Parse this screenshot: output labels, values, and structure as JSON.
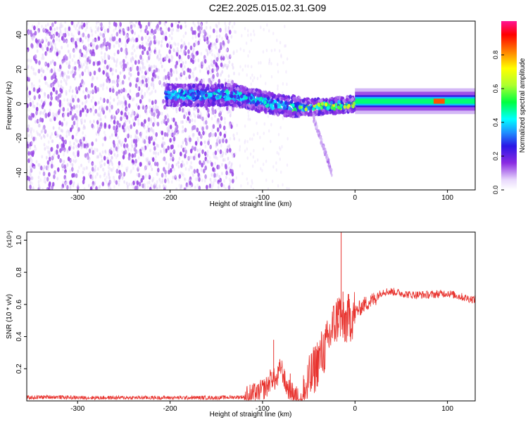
{
  "title": "C2E2.2025.015.02.31.G09",
  "chart_data": [
    {
      "type": "heatmap",
      "description_hidden": false,
      "xlabel": "Height of straight line (km)",
      "ylabel": "Frequency (Hz)",
      "xlim": [
        -355,
        130
      ],
      "ylim": [
        -50,
        48
      ],
      "xticks": [
        -300,
        -200,
        -100,
        0,
        100
      ],
      "yticks": [
        -40,
        -20,
        0,
        20,
        40
      ],
      "colorbar": {
        "label": "Normalized spectral amplitude",
        "range": [
          0,
          1
        ],
        "ticks": [
          0.0,
          0.2,
          0.4,
          0.6,
          0.8
        ],
        "colormap": [
          "#ffffff",
          "#dcc8f8",
          "#8a2be2",
          "#2a16e6",
          "#1e90ff",
          "#00ffff",
          "#00ff40",
          "#adff2f",
          "#ffff00",
          "#ff8000",
          "#ff0000",
          "#ff1493"
        ]
      },
      "bands": [
        {
          "name": "noise",
          "x": [
            -355,
            -130
          ],
          "freq": [
            -50,
            48
          ],
          "amplitude": 0.05
        },
        {
          "name": "onset",
          "x": [
            -205,
            -130
          ],
          "freq": [
            0,
            10
          ],
          "amplitude": 0.3
        },
        {
          "name": "signal",
          "x": [
            -130,
            0
          ],
          "freq_start": [
            0,
            10
          ],
          "freq_end": [
            -5,
            5
          ],
          "amplitude": 0.35
        },
        {
          "name": "carrier",
          "x": [
            0,
            130
          ],
          "freq": [
            -1,
            4
          ],
          "amplitude": 0.45
        },
        {
          "name": "peak",
          "x": [
            85,
            97
          ],
          "freq": [
            0,
            3
          ],
          "amplitude": 0.85
        }
      ]
    },
    {
      "type": "line",
      "xlabel": "Height of straight line (km)",
      "ylabel": "SNR (10 * v/v)",
      "y_multiplier": "(x10⁴)",
      "xlim": [
        -355,
        130
      ],
      "ylim": [
        0,
        1.05
      ],
      "xticks": [
        -300,
        -200,
        -100,
        0,
        100
      ],
      "yticks": [
        0.2,
        0.4,
        0.6,
        0.8,
        1.0
      ],
      "color": "#e8332e",
      "x": [
        -355,
        -330,
        -300,
        -250,
        -200,
        -150,
        -120,
        -105,
        -95,
        -90,
        -85,
        -80,
        -75,
        -70,
        -65,
        -60,
        -55,
        -50,
        -45,
        -40,
        -35,
        -30,
        -25,
        -20,
        -17,
        -15,
        -12,
        -10,
        -5,
        0,
        10,
        20,
        30,
        40,
        50,
        60,
        80,
        100,
        120,
        130
      ],
      "y": [
        0.02,
        0.025,
        0.02,
        0.02,
        0.02,
        0.02,
        0.025,
        0.05,
        0.09,
        0.15,
        0.12,
        0.22,
        0.1,
        0.06,
        0.03,
        0.02,
        0.03,
        0.12,
        0.18,
        0.25,
        0.3,
        0.35,
        0.45,
        0.5,
        0.55,
        0.52,
        0.45,
        0.5,
        0.52,
        0.55,
        0.6,
        0.63,
        0.68,
        0.68,
        0.67,
        0.66,
        0.66,
        0.67,
        0.64,
        0.63
      ],
      "spikes": [
        {
          "x": -88,
          "y": 0.38
        },
        {
          "x": -70,
          "y": 0.17
        },
        {
          "x": -24,
          "y": 0.52
        },
        {
          "x": -22,
          "y": 0.48
        },
        {
          "x": -18,
          "y": 0.62
        },
        {
          "x": -15,
          "y": 1.05
        },
        {
          "x": -13,
          "y": 0.68
        }
      ]
    }
  ]
}
